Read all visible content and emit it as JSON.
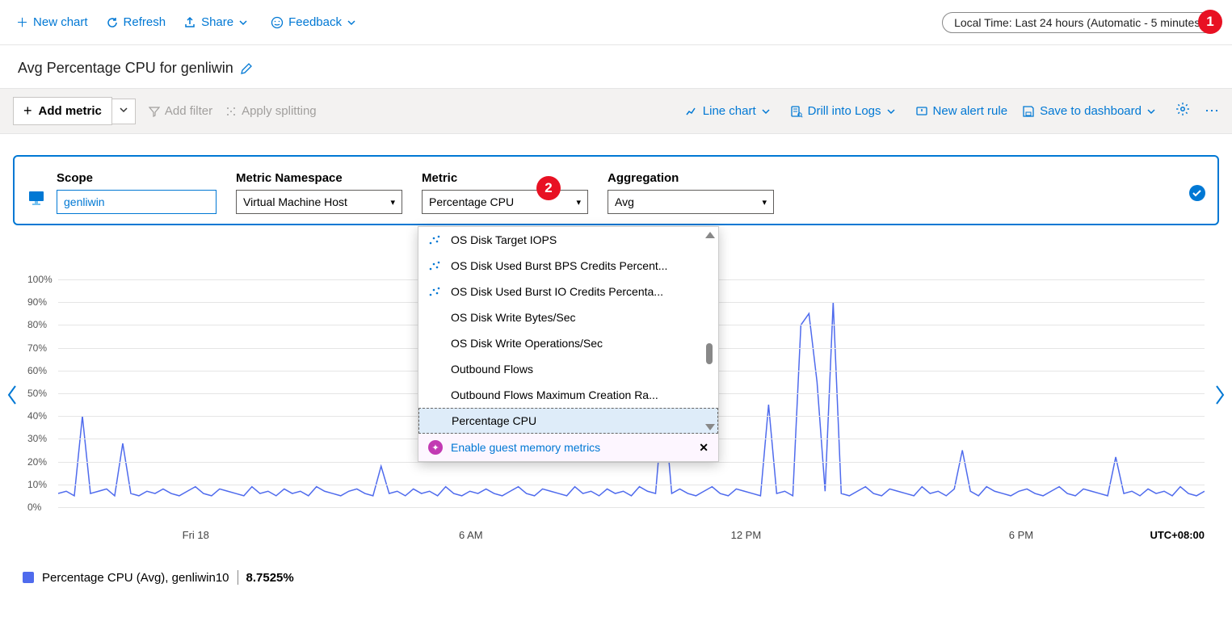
{
  "top": {
    "new_chart": "New chart",
    "refresh": "Refresh",
    "share": "Share",
    "feedback": "Feedback",
    "time_pill": "Local Time: Last 24 hours (Automatic - 5 minutes)"
  },
  "title": "Avg Percentage CPU for genliwin",
  "action": {
    "add_metric": "Add metric",
    "add_filter": "Add filter",
    "apply_splitting": "Apply splitting",
    "line_chart": "Line chart",
    "drill_logs": "Drill into Logs",
    "new_alert": "New alert rule",
    "save_dash": "Save to dashboard"
  },
  "selector": {
    "scope_lbl": "Scope",
    "scope_val": "genliwin",
    "ns_lbl": "Metric Namespace",
    "ns_val": "Virtual Machine Host",
    "metric_lbl": "Metric",
    "metric_val": "Percentage CPU",
    "agg_lbl": "Aggregation",
    "agg_val": "Avg"
  },
  "dropdown": {
    "items": [
      {
        "label": "OS Disk Target IOPS",
        "icon": true
      },
      {
        "label": "OS Disk Used Burst BPS Credits Percent...",
        "icon": true
      },
      {
        "label": "OS Disk Used Burst IO Credits Percenta...",
        "icon": true
      },
      {
        "label": "OS Disk Write Bytes/Sec",
        "icon": false
      },
      {
        "label": "OS Disk Write Operations/Sec",
        "icon": false
      },
      {
        "label": "Outbound Flows",
        "icon": false
      },
      {
        "label": "Outbound Flows Maximum Creation Ra...",
        "icon": false
      },
      {
        "label": "Percentage CPU",
        "icon": false
      }
    ],
    "selected_index": 7,
    "footer": "Enable guest memory metrics"
  },
  "annotations": {
    "b1": "1",
    "b2": "2"
  },
  "chart": {
    "type": "line",
    "line_color": "#4f6bed",
    "line_width": 1.5,
    "background_color": "#ffffff",
    "grid_color": "#e5e5e5",
    "ylim": [
      0,
      100
    ],
    "ytick_step": 10,
    "yticks": [
      "0%",
      "10%",
      "20%",
      "30%",
      "40%",
      "50%",
      "60%",
      "70%",
      "80%",
      "90%",
      "100%"
    ],
    "xticks": [
      "Fri 18",
      "6 AM",
      "12 PM",
      "6 PM"
    ],
    "timezone": "UTC+08:00",
    "values": [
      6,
      7,
      5,
      40,
      6,
      7,
      8,
      5,
      28,
      6,
      5,
      7,
      6,
      8,
      6,
      5,
      7,
      9,
      6,
      5,
      8,
      7,
      6,
      5,
      9,
      6,
      7,
      5,
      8,
      6,
      7,
      5,
      9,
      7,
      6,
      5,
      7,
      8,
      6,
      5,
      18,
      6,
      7,
      5,
      8,
      6,
      7,
      5,
      9,
      6,
      5,
      7,
      6,
      8,
      6,
      5,
      7,
      9,
      6,
      5,
      8,
      7,
      6,
      5,
      9,
      6,
      7,
      5,
      8,
      6,
      7,
      5,
      9,
      7,
      6,
      48,
      6,
      8,
      6,
      5,
      7,
      9,
      6,
      5,
      8,
      7,
      6,
      5,
      45,
      6,
      7,
      5,
      80,
      85,
      55,
      7,
      90,
      6,
      5,
      7,
      9,
      6,
      5,
      8,
      7,
      6,
      5,
      9,
      6,
      7,
      5,
      8,
      25,
      7,
      5,
      9,
      7,
      6,
      5,
      7,
      8,
      6,
      5,
      7,
      9,
      6,
      5,
      8,
      7,
      6,
      5,
      22,
      6,
      7,
      5,
      8,
      6,
      7,
      5,
      9,
      6,
      5,
      7
    ]
  },
  "legend": {
    "label": "Percentage CPU (Avg), genliwin10",
    "value": "8.7525%"
  }
}
